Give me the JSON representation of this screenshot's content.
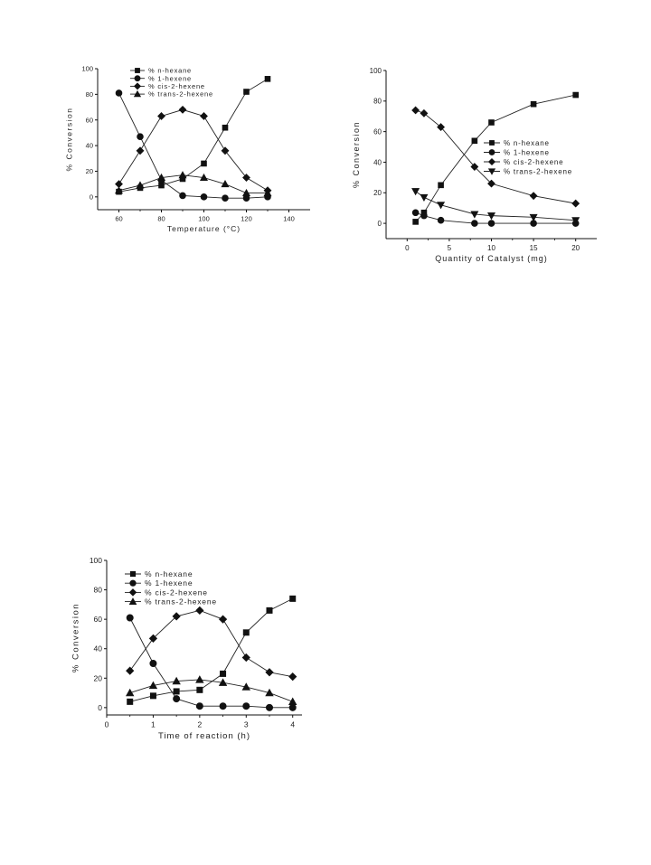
{
  "chart_data": [
    {
      "type": "line",
      "xlabel": "Temperature (°C)",
      "ylabel": "% Conversion",
      "xlim": [
        50,
        150
      ],
      "ylim": [
        -10,
        100
      ],
      "xticks": [
        60,
        80,
        100,
        120,
        140
      ],
      "yticks": [
        0,
        20,
        40,
        60,
        80,
        100
      ],
      "legend_position": "top-center",
      "grid": false,
      "series": [
        {
          "name": "% n-hexane",
          "marker": "square",
          "x": [
            60,
            70,
            80,
            90,
            100,
            110,
            120,
            130
          ],
          "y": [
            4,
            7,
            9,
            14,
            26,
            54,
            82,
            92
          ]
        },
        {
          "name": "% 1-hexene",
          "marker": "circle",
          "x": [
            60,
            70,
            80,
            90,
            100,
            110,
            120,
            130
          ],
          "y": [
            81,
            47,
            13,
            1,
            0,
            -1,
            -1,
            0
          ]
        },
        {
          "name": "% cis-2-hexene",
          "marker": "diamond",
          "x": [
            60,
            70,
            80,
            90,
            100,
            110,
            120,
            130
          ],
          "y": [
            10,
            36,
            63,
            68,
            63,
            36,
            15,
            5
          ]
        },
        {
          "name": "% trans-2-hexene",
          "marker": "triangle-up",
          "x": [
            60,
            70,
            80,
            90,
            100,
            110,
            120,
            130
          ],
          "y": [
            5,
            9,
            15,
            17,
            15,
            10,
            3,
            3
          ]
        }
      ]
    },
    {
      "type": "line",
      "xlabel": "Quantity of Catalyst (mg)",
      "ylabel": "% Conversion",
      "xlim": [
        -2.5,
        22.5
      ],
      "ylim": [
        -10,
        100
      ],
      "xticks": [
        0,
        5,
        10,
        15,
        20
      ],
      "yticks": [
        0,
        20,
        40,
        60,
        80,
        100
      ],
      "legend_position": "center-right",
      "grid": false,
      "series": [
        {
          "name": "% n-hexane",
          "marker": "square",
          "x": [
            1,
            2,
            4,
            8,
            10,
            15,
            20
          ],
          "y": [
            1,
            7,
            25,
            54,
            66,
            78,
            84
          ]
        },
        {
          "name": "% 1-hexene",
          "marker": "circle",
          "x": [
            1,
            2,
            4,
            8,
            10,
            15,
            20
          ],
          "y": [
            7,
            5,
            2,
            0,
            0,
            0,
            0
          ]
        },
        {
          "name": "% cis-2-hexene",
          "marker": "diamond",
          "x": [
            1,
            2,
            4,
            8,
            10,
            15,
            20
          ],
          "y": [
            74,
            72,
            63,
            37,
            26,
            18,
            13
          ]
        },
        {
          "name": "% trans-2-hexene",
          "marker": "triangle-down",
          "x": [
            1,
            2,
            4,
            8,
            10,
            15,
            20
          ],
          "y": [
            21,
            17,
            12,
            6,
            5,
            4,
            2
          ]
        }
      ]
    },
    {
      "type": "line",
      "xlabel": "Time of reaction (h)",
      "ylabel": "% Conversion",
      "xlim": [
        0,
        4.2
      ],
      "ylim": [
        -5,
        100
      ],
      "xticks": [
        0,
        1,
        2,
        3,
        4
      ],
      "yticks": [
        0,
        20,
        40,
        60,
        80,
        100
      ],
      "legend_position": "top-left",
      "grid": false,
      "series": [
        {
          "name": "% n-hexane",
          "marker": "square",
          "x": [
            0.5,
            1,
            1.5,
            2,
            2.5,
            3,
            3.5,
            4
          ],
          "y": [
            4,
            8,
            11,
            12,
            23,
            51,
            66,
            74
          ]
        },
        {
          "name": "% 1-hexene",
          "marker": "circle",
          "x": [
            0.5,
            1,
            1.5,
            2,
            2.5,
            3,
            3.5,
            4
          ],
          "y": [
            61,
            30,
            6,
            1,
            1,
            1,
            0,
            0
          ]
        },
        {
          "name": "% cis-2-hexene",
          "marker": "diamond",
          "x": [
            0.5,
            1,
            1.5,
            2,
            2.5,
            3,
            3.5,
            4
          ],
          "y": [
            25,
            47,
            62,
            66,
            60,
            34,
            24,
            21
          ]
        },
        {
          "name": "% trans-2-hexene",
          "marker": "triangle-up",
          "x": [
            0.5,
            1,
            1.5,
            2,
            2.5,
            3,
            3.5,
            4
          ],
          "y": [
            10,
            15,
            18,
            19,
            17,
            14,
            10,
            4
          ]
        }
      ]
    }
  ]
}
